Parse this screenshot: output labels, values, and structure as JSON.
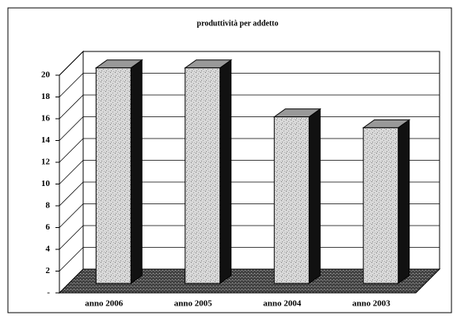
{
  "chart_data": {
    "type": "bar3d",
    "title": "produttività per addetto",
    "categories": [
      "anno 2006",
      "anno 2005",
      "anno 2004",
      "anno 2003"
    ],
    "values": [
      19.8,
      19.8,
      15.3,
      14.3
    ],
    "ylim": [
      0,
      20
    ],
    "yticks": [
      {
        "value": 0,
        "label": "-"
      },
      2,
      4,
      6,
      8,
      10,
      12,
      14,
      16,
      18,
      20
    ],
    "grid": true
  }
}
